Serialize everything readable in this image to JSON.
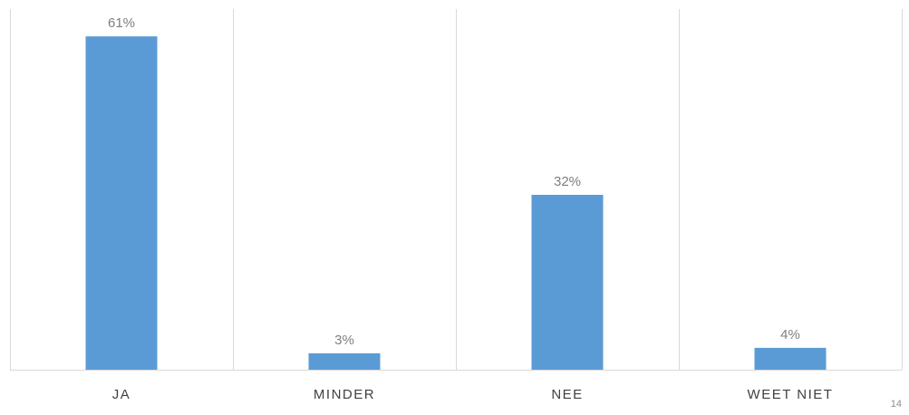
{
  "chart_data": {
    "type": "bar",
    "categories": [
      "JA",
      "MINDER",
      "NEE",
      "WEET NIET"
    ],
    "values": [
      61,
      3,
      32,
      4
    ],
    "data_labels": [
      "61%",
      "3%",
      "32%",
      "4%"
    ],
    "value_unit": "%",
    "ylim": [
      0,
      66
    ],
    "bar_color": "#5b9bd5",
    "grid": "vertical-separators",
    "legend": "none"
  },
  "footer": {
    "slide_number": "14"
  }
}
